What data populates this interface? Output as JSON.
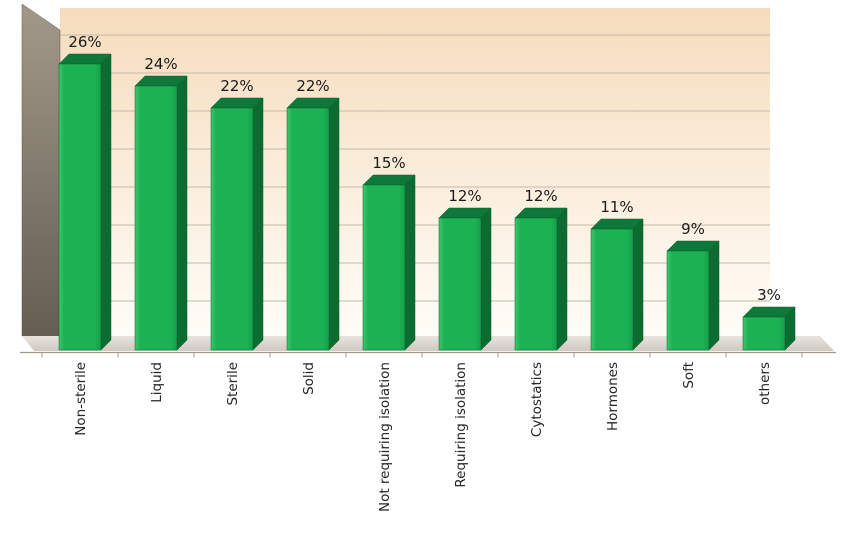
{
  "chart_data": {
    "type": "bar",
    "style": "3d-column",
    "title": "",
    "xlabel": "",
    "ylabel": "",
    "ylim": [
      0,
      30
    ],
    "grid": true,
    "legend": false,
    "categories": [
      "Non-sterile",
      "Liquid",
      "Sterile",
      "Solid",
      "Not requiring isolation",
      "Requiring isolation",
      "Cytostatics",
      "Hormones",
      "Soft",
      "others"
    ],
    "values": [
      26,
      24,
      22,
      22,
      15,
      12,
      12,
      11,
      9,
      3
    ],
    "labels": [
      "26%",
      "24%",
      "22%",
      "22%",
      "15%",
      "12%",
      "12%",
      "11%",
      "9%",
      "3%"
    ],
    "colors": {
      "bar_front_left": "#3ec86f",
      "bar_front": "#1cb254",
      "bar_front_right": "#13a047",
      "bar_side": "#0b6b31",
      "bar_top": "#0d7839",
      "bar_outline": "#0a5e2c",
      "back_wall_top": "#f6dcbd",
      "back_wall_bottom": "#fffdf8",
      "side_wall_top": "#a2998a",
      "side_wall_bottom": "#625b4e",
      "floor_light": "#e8e4dd",
      "floor_dark": "#cfc9bf",
      "gridline": "#c3bbab",
      "axis": "#a19a8c",
      "text": "#1a1a1a"
    }
  }
}
